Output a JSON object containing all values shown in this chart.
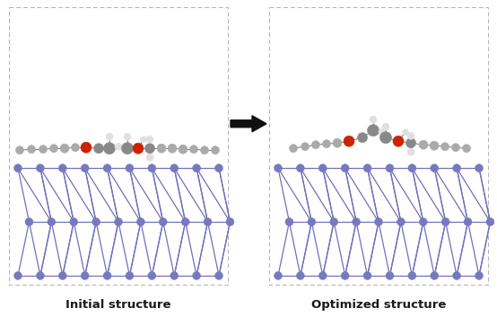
{
  "label_left": "Initial structure",
  "label_right": "Optimized structure",
  "background_color": "#ffffff",
  "box_border_color": "#b0b0b0",
  "arrow_color": "#111111",
  "label_fontsize": 9.5,
  "label_fontweight": "bold",
  "lattice_line_color": "#7070bb",
  "lattice_node_color": "#7878c0",
  "molecule_gray_dark": "#888888",
  "molecule_gray_mid": "#aaaaaa",
  "molecule_white": "#e0e0e0",
  "molecule_red": "#cc2200",
  "figsize": [
    5.54,
    3.53
  ],
  "dpi": 100
}
